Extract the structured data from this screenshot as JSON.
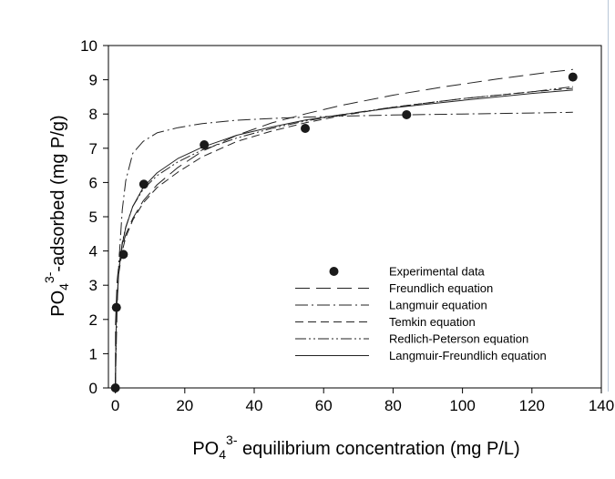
{
  "chart_data": {
    "type": "scatter",
    "title": "",
    "xlabel": {
      "prefix": "PO",
      "sub": "4",
      "sup": "3-",
      "suffix": " equilibrium concentration (mg P/L)"
    },
    "ylabel": {
      "prefix": "PO",
      "sub": "4",
      "sup": "3-",
      "suffix": "-adsorbed (mg P/g)"
    },
    "xlim": [
      -2,
      140
    ],
    "ylim": [
      0,
      10
    ],
    "xticks": [
      0,
      20,
      40,
      60,
      80,
      100,
      120,
      140
    ],
    "yticks": [
      0,
      1,
      2,
      3,
      4,
      5,
      6,
      7,
      8,
      9,
      10
    ],
    "grid": false,
    "legend_position": "bottom-right",
    "series": [
      {
        "name": "Experimental data",
        "kind": "points",
        "x": [
          0,
          0.3,
          2.3,
          8.2,
          25.6,
          54.7,
          83.9,
          131.8
        ],
        "y": [
          0,
          2.35,
          3.9,
          5.95,
          7.1,
          7.58,
          7.98,
          9.08
        ]
      },
      {
        "name": "Freundlich equation",
        "kind": "line",
        "dash": "long",
        "x": [
          0,
          0.05,
          0.5,
          1,
          2,
          3,
          5,
          8,
          12,
          18,
          25,
          35,
          45,
          55,
          65,
          80,
          95,
          110,
          125,
          131.8
        ],
        "y": [
          0,
          1.9,
          3.12,
          3.59,
          4.13,
          4.48,
          4.95,
          5.46,
          5.93,
          6.44,
          6.91,
          7.38,
          7.74,
          8.01,
          8.25,
          8.55,
          8.8,
          9.02,
          9.22,
          9.3
        ]
      },
      {
        "name": "Langmuir equation",
        "kind": "line",
        "dash": "dashdot",
        "x": [
          0,
          0.5,
          1,
          2,
          3,
          5,
          8,
          12,
          18,
          25,
          35,
          45,
          55,
          65,
          80,
          100,
          120,
          131.8
        ],
        "y": [
          0,
          2.3,
          3.65,
          5.2,
          6.05,
          6.85,
          7.2,
          7.45,
          7.6,
          7.72,
          7.82,
          7.87,
          7.91,
          7.94,
          7.97,
          8.0,
          8.03,
          8.05
        ]
      },
      {
        "name": "Temkin equation",
        "kind": "line",
        "dash": "medium",
        "x": [
          0,
          0.3,
          1,
          2,
          3,
          5,
          8,
          12,
          18,
          25,
          35,
          45,
          55,
          65,
          80,
          100,
          120,
          131.8
        ],
        "y": [
          0,
          2.5,
          3.35,
          4.0,
          4.4,
          4.9,
          5.4,
          5.85,
          6.3,
          6.75,
          7.2,
          7.5,
          7.75,
          7.95,
          8.2,
          8.45,
          8.65,
          8.75
        ]
      },
      {
        "name": "Redlich-Peterson equation",
        "kind": "line",
        "dash": "dashdotdot",
        "x": [
          0,
          0.3,
          1,
          2,
          3,
          5,
          8,
          12,
          18,
          25,
          35,
          45,
          55,
          65,
          80,
          100,
          120,
          131.8
        ],
        "y": [
          0,
          2.25,
          3.45,
          4.25,
          4.7,
          5.3,
          5.8,
          6.2,
          6.6,
          6.95,
          7.3,
          7.58,
          7.8,
          7.98,
          8.2,
          8.45,
          8.65,
          8.8
        ]
      },
      {
        "name": "Langmuir-Freundlich equation",
        "kind": "line",
        "dash": "solid",
        "x": [
          0,
          0.3,
          1,
          2,
          3,
          5,
          8,
          12,
          18,
          25,
          35,
          45,
          55,
          65,
          80,
          100,
          120,
          131.8
        ],
        "y": [
          0,
          2.2,
          3.4,
          4.2,
          4.68,
          5.3,
          5.85,
          6.28,
          6.7,
          7.03,
          7.38,
          7.62,
          7.83,
          7.98,
          8.18,
          8.4,
          8.6,
          8.7
        ]
      }
    ]
  }
}
